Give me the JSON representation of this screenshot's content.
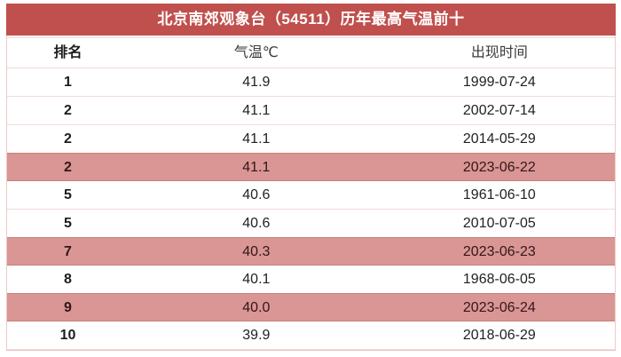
{
  "title": "北京南郊观象台（54511）历年最高气温前十",
  "colors": {
    "header_bg": "#C0504D",
    "header_text": "#FFFFFF",
    "highlight_row_bg": "#D99694",
    "highlight_row_border": "#C8817E",
    "row_separator": "#F2DCDB",
    "outer_border": "#EAC2C0",
    "body_text": "#222222"
  },
  "table": {
    "columns": [
      "排名",
      "气温℃",
      "出现时间"
    ],
    "rows": [
      {
        "rank": "1",
        "temp": "41.9",
        "date": "1999-07-24",
        "highlighted": false
      },
      {
        "rank": "2",
        "temp": "41.1",
        "date": "2002-07-14",
        "highlighted": false
      },
      {
        "rank": "2",
        "temp": "41.1",
        "date": "2014-05-29",
        "highlighted": false
      },
      {
        "rank": "2",
        "temp": "41.1",
        "date": "2023-06-22",
        "highlighted": true
      },
      {
        "rank": "5",
        "temp": "40.6",
        "date": "1961-06-10",
        "highlighted": false
      },
      {
        "rank": "5",
        "temp": "40.6",
        "date": "2010-07-05",
        "highlighted": false
      },
      {
        "rank": "7",
        "temp": "40.3",
        "date": "2023-06-23",
        "highlighted": true
      },
      {
        "rank": "8",
        "temp": "40.1",
        "date": "1968-06-05",
        "highlighted": false
      },
      {
        "rank": "9",
        "temp": "40.0",
        "date": "2023-06-24",
        "highlighted": true
      },
      {
        "rank": "10",
        "temp": "39.9",
        "date": "2018-06-29",
        "highlighted": false
      }
    ]
  },
  "chart_data": {
    "type": "table",
    "title": "北京南郊观象台（54511）历年最高气温前十",
    "columns": [
      "排名",
      "气温℃",
      "出现时间"
    ],
    "rows": [
      [
        "1",
        41.9,
        "1999-07-24"
      ],
      [
        "2",
        41.1,
        "2002-07-14"
      ],
      [
        "2",
        41.1,
        "2014-05-29"
      ],
      [
        "2",
        41.1,
        "2023-06-22"
      ],
      [
        "5",
        40.6,
        "1961-06-10"
      ],
      [
        "5",
        40.6,
        "2010-07-05"
      ],
      [
        "7",
        40.3,
        "2023-06-23"
      ],
      [
        "8",
        40.1,
        "1968-06-05"
      ],
      [
        "9",
        40.0,
        "2023-06-24"
      ],
      [
        "10",
        39.9,
        "2018-06-29"
      ]
    ],
    "highlighted_rows": [
      3,
      6,
      8
    ],
    "highlight_bg": "#D99694",
    "header_bg": "#C0504D"
  }
}
